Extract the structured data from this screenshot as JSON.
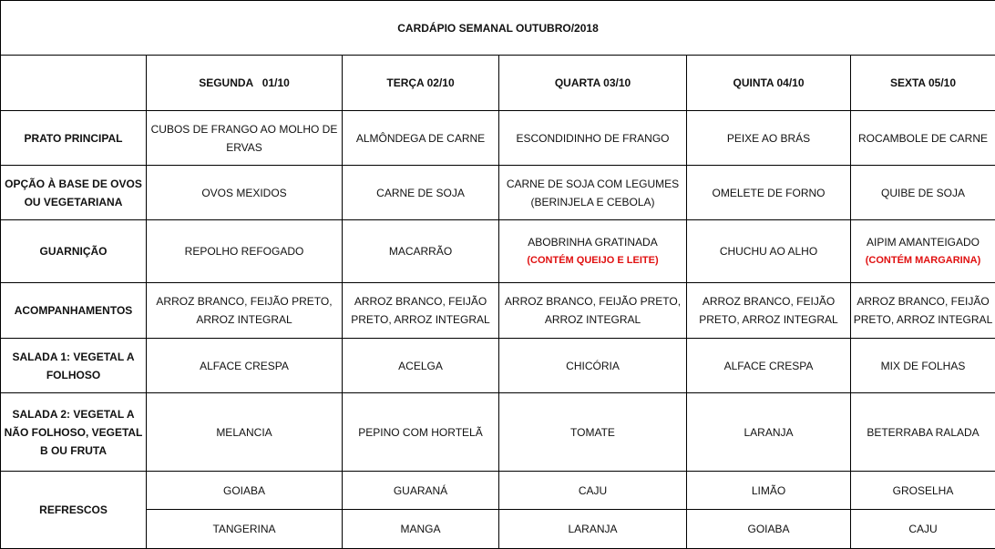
{
  "title": "CARDÁPIO SEMANAL OUTUBRO/2018",
  "days": [
    "SEGUNDA   01/10",
    "TERÇA 02/10",
    "QUARTA 03/10",
    "QUINTA 04/10",
    "SEXTA 05/10"
  ],
  "rows": [
    {
      "label": "PRATO PRINCIPAL",
      "cells": [
        "CUBOS DE FRANGO AO MOLHO DE ERVAS",
        "ALMÔNDEGA DE CARNE",
        "ESCONDIDINHO DE FRANGO",
        "PEIXE AO BRÁS",
        "ROCAMBOLE DE CARNE"
      ]
    },
    {
      "label": "OPÇÃO À BASE DE OVOS OU VEGETARIANA",
      "cells": [
        "OVOS MEXIDOS",
        "CARNE DE SOJA",
        "CARNE DE SOJA COM LEGUMES (BERINJELA E CEBOLA)",
        "OMELETE DE FORNO",
        "QUIBE DE SOJA"
      ]
    },
    {
      "label": "GUARNIÇÃO",
      "cells": [
        "REPOLHO REFOGADO",
        "MACARRÃO",
        "ABOBRINHA GRATINADA",
        "CHUCHU AO ALHO",
        "AIPIM AMANTEIGADO"
      ],
      "notes": [
        "",
        "",
        "(CONTÉM QUEIJO E LEITE)",
        "",
        "(CONTÉM MARGARINA)"
      ]
    },
    {
      "label": "ACOMPANHAMENTOS",
      "cells": [
        "ARROZ BRANCO, FEIJÃO PRETO, ARROZ INTEGRAL",
        "ARROZ BRANCO, FEIJÃO PRETO, ARROZ INTEGRAL",
        "ARROZ BRANCO, FEIJÃO PRETO, ARROZ INTEGRAL",
        "ARROZ BRANCO, FEIJÃO PRETO, ARROZ INTEGRAL",
        "ARROZ BRANCO, FEIJÃO PRETO, ARROZ INTEGRAL"
      ]
    },
    {
      "label": "SALADA 1: VEGETAL A FOLHOSO",
      "cells": [
        "ALFACE CRESPA",
        "ACELGA",
        "CHICÓRIA",
        "ALFACE CRESPA",
        "MIX DE FOLHAS"
      ]
    },
    {
      "label": "SALADA 2: VEGETAL A NÃO FOLHOSO, VEGETAL B OU FRUTA",
      "cells": [
        "MELANCIA",
        "PEPINO COM HORTELÃ",
        "TOMATE",
        "LARANJA",
        "BETERRABA RALADA"
      ]
    }
  ],
  "refrescos": {
    "label": "REFRESCOS",
    "row1": [
      "GOIABA",
      "GUARANÁ",
      "CAJU",
      "LIMÃO",
      "GROSELHA"
    ],
    "row2": [
      "TANGERINA",
      "MANGA",
      "LARANJA",
      "GOIABA",
      "CAJU"
    ]
  },
  "colors": {
    "note": "#e01010"
  }
}
